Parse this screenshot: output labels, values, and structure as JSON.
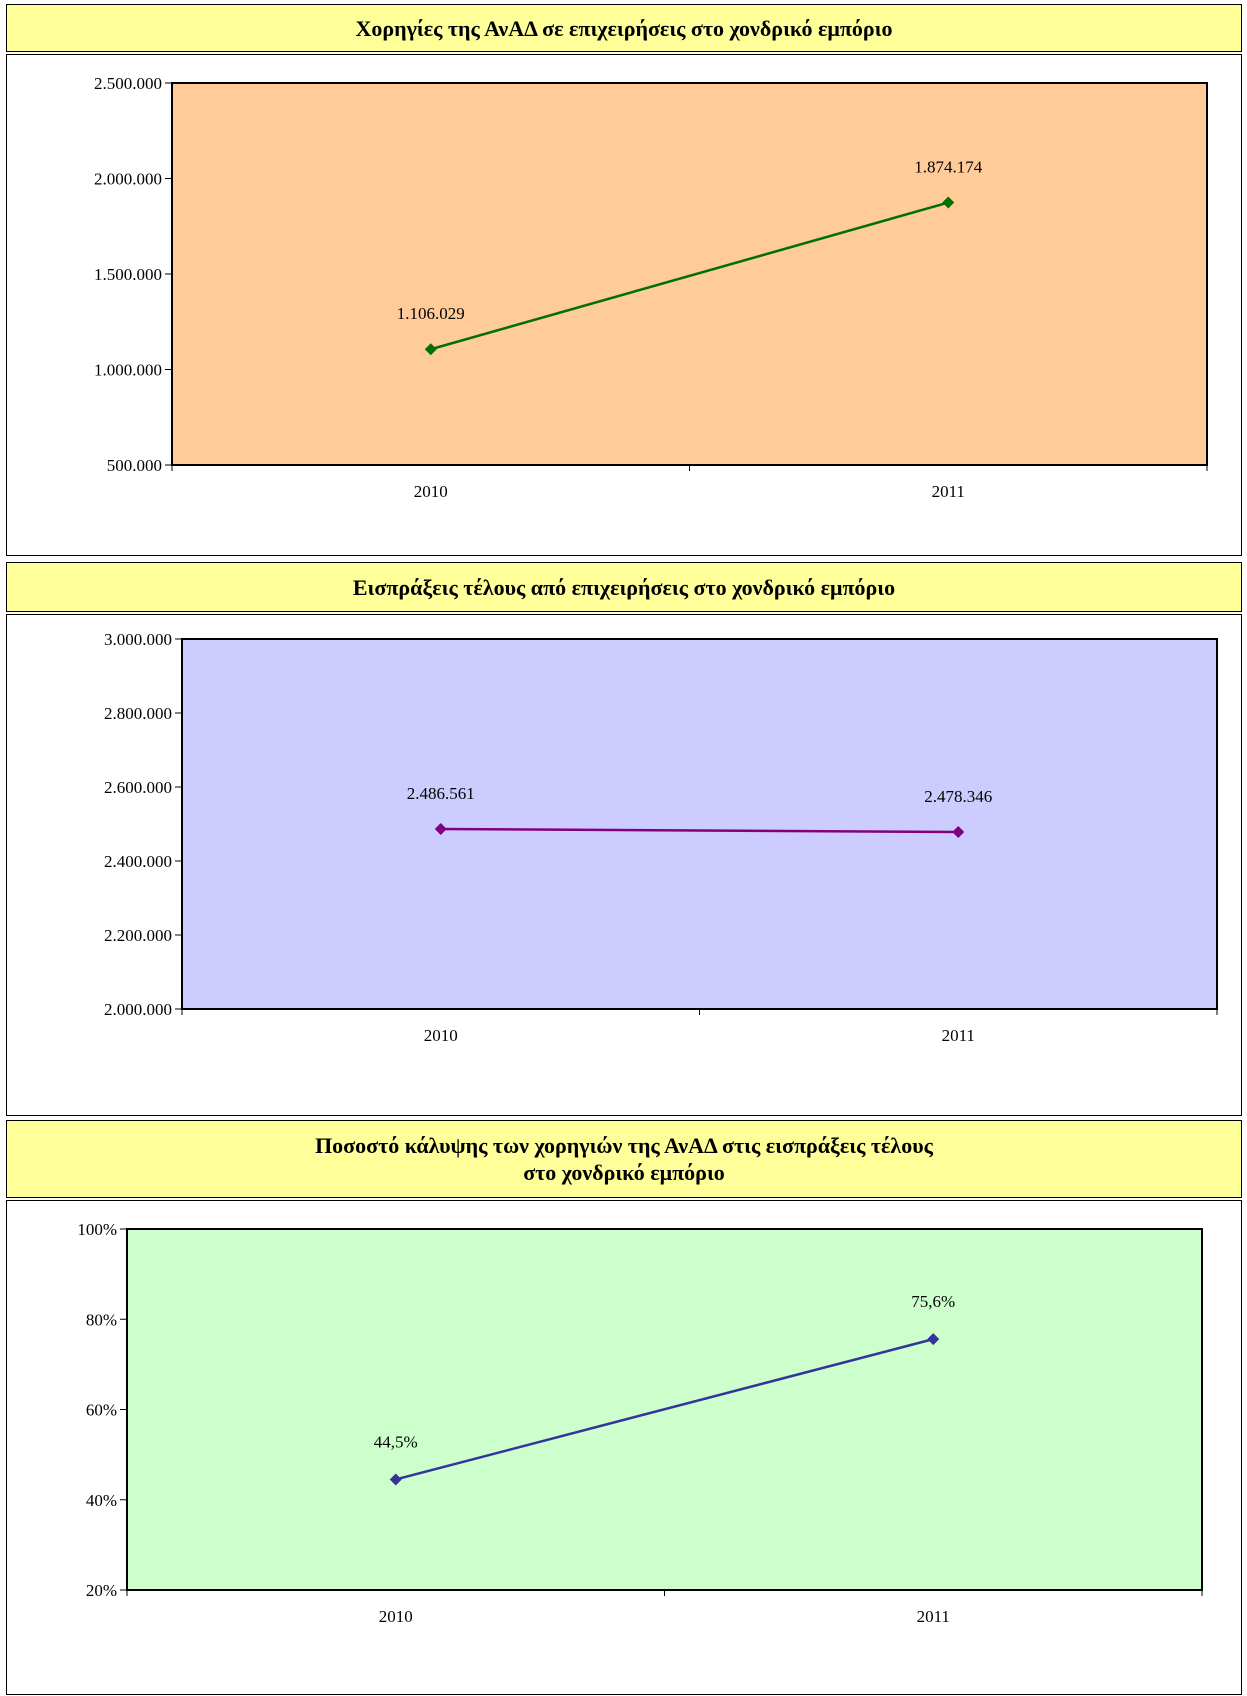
{
  "chart_data": [
    {
      "type": "line",
      "title": "Χορηγίες της ΑνΑΔ σε επιχειρήσεις στο χονδρικό εμπόριο",
      "title_lines": [
        "Χορηγίες της ΑνΑΔ σε επιχειρήσεις στο χονδρικό εμπόριο"
      ],
      "categories": [
        "2010",
        "2011"
      ],
      "series": [
        {
          "values": [
            1106029,
            1874174
          ]
        }
      ],
      "data_labels": [
        "1.106.029",
        "1.874.174"
      ],
      "yticks": [
        500000,
        1000000,
        1500000,
        2000000,
        2500000
      ],
      "ytick_labels": [
        "500.000",
        "1.000.000",
        "1.500.000",
        "2.000.000",
        "2.500.000"
      ],
      "ylim": [
        500000,
        2500000
      ],
      "grid": false,
      "colors": {
        "plot_bg": "#ffcc99",
        "line": "#007000",
        "marker": "#007000"
      }
    },
    {
      "type": "line",
      "title": "Εισπράξεις τέλους από επιχειρήσεις στο χονδρικό εμπόριο",
      "title_lines": [
        "Εισπράξεις τέλους από επιχειρήσεις στο χονδρικό εμπόριο"
      ],
      "categories": [
        "2010",
        "2011"
      ],
      "series": [
        {
          "values": [
            2486561,
            2478346
          ]
        }
      ],
      "data_labels": [
        "2.486.561",
        "2.478.346"
      ],
      "yticks": [
        2000000,
        2200000,
        2400000,
        2600000,
        2800000,
        3000000
      ],
      "ytick_labels": [
        "2.000.000",
        "2.200.000",
        "2.400.000",
        "2.600.000",
        "2.800.000",
        "3.000.000"
      ],
      "ylim": [
        2000000,
        3000000
      ],
      "grid": false,
      "colors": {
        "plot_bg": "#ccccff",
        "line": "#800080",
        "marker": "#800080"
      }
    },
    {
      "type": "line",
      "title": "Ποσοστό κάλυψης των χορηγιών της ΑνΑΔ στις εισπράξεις τέλους στο χονδρικό εμπόριο",
      "title_lines": [
        "Ποσοστό κάλυψης των χορηγιών της ΑνΑΔ στις εισπράξεις τέλους",
        "στο χονδρικό εμπόριο"
      ],
      "categories": [
        "2010",
        "2011"
      ],
      "series": [
        {
          "values": [
            44.5,
            75.6
          ]
        }
      ],
      "data_labels": [
        "44,5%",
        "75,6%"
      ],
      "yticks": [
        20,
        40,
        60,
        80,
        100
      ],
      "ytick_labels": [
        "20%",
        "40%",
        "60%",
        "80%",
        "100%"
      ],
      "ylim": [
        20,
        100
      ],
      "grid": false,
      "colors": {
        "plot_bg": "#ccffcc",
        "line": "#333399",
        "marker": "#333399"
      }
    }
  ]
}
